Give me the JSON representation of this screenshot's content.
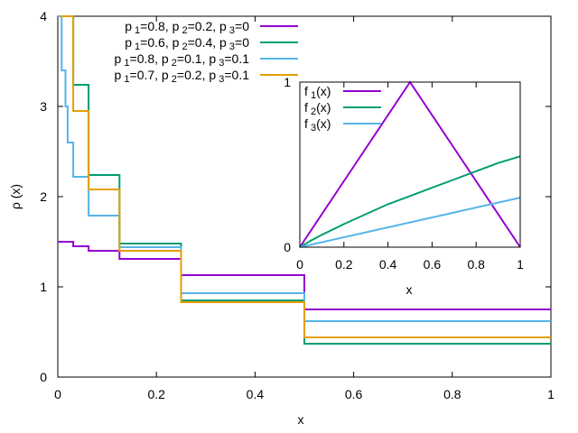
{
  "chart_data": [
    {
      "type": "line",
      "xlabel": "x",
      "ylabel": "ρ (x)",
      "xlim": [
        0,
        1
      ],
      "ylim": [
        0,
        4
      ],
      "xticks": [
        "0",
        "0.2",
        "0.4",
        "0.6",
        "0.8",
        "1"
      ],
      "yticks": [
        "0",
        "1",
        "2",
        "3",
        "4"
      ],
      "legend_placement": "top-right",
      "grid": false,
      "series": [
        {
          "name": "p 1=0.8, p 2=0.2, p 3=0",
          "label": {
            "p1": "0.8",
            "p2": "0.2",
            "p3": "0"
          },
          "color": "#9400d3",
          "steps": [
            [
              0,
              0.03125,
              1.5
            ],
            [
              0.03125,
              0.0625,
              1.45
            ],
            [
              0.0625,
              0.125,
              1.4
            ],
            [
              0.125,
              0.25,
              1.31
            ],
            [
              0.25,
              0.5,
              1.13
            ],
            [
              0.5,
              1,
              0.75
            ]
          ]
        },
        {
          "name": "p 1=0.6, p 2=0.4, p 3=0",
          "label": {
            "p1": "0.6",
            "p2": "0.4",
            "p3": "0"
          },
          "color": "#009e73",
          "steps": [
            [
              0,
              0.03125,
              4.0
            ],
            [
              0.03125,
              0.0625,
              3.24
            ],
            [
              0.0625,
              0.125,
              2.24
            ],
            [
              0.125,
              0.25,
              1.48
            ],
            [
              0.25,
              0.5,
              0.85
            ],
            [
              0.5,
              1,
              0.37
            ]
          ]
        },
        {
          "name": "p 1=0.8, p 2=0.1, p 3=0.1",
          "label": {
            "p1": "0.8",
            "p2": "0.1",
            "p3": "0.1"
          },
          "color": "#56b4e9",
          "steps": [
            [
              0,
              0.0078,
              4.0
            ],
            [
              0.0078,
              0.0156,
              3.4
            ],
            [
              0.0156,
              0.02,
              3.0
            ],
            [
              0.02,
              0.03125,
              2.6
            ],
            [
              0.03125,
              0.0625,
              2.22
            ],
            [
              0.0625,
              0.125,
              1.79
            ],
            [
              0.125,
              0.25,
              1.44
            ],
            [
              0.25,
              0.5,
              0.93
            ],
            [
              0.5,
              1,
              0.62
            ]
          ]
        },
        {
          "name": "p 1=0.7, p 2=0.2, p 3=0.1",
          "label": {
            "p1": "0.7",
            "p2": "0.2",
            "p3": "0.1"
          },
          "color": "#e69f00",
          "steps": [
            [
              0.005,
              0.03125,
              4.0
            ],
            [
              0.03125,
              0.0625,
              2.95
            ],
            [
              0.0625,
              0.125,
              2.08
            ],
            [
              0.125,
              0.25,
              1.4
            ],
            [
              0.25,
              0.5,
              0.83
            ],
            [
              0.5,
              1,
              0.44
            ]
          ]
        }
      ]
    },
    {
      "type": "line",
      "xlabel": "x",
      "ylabel": "",
      "xlim": [
        0,
        1
      ],
      "ylim": [
        0,
        1
      ],
      "xticks": [
        "0",
        "0.2",
        "0.4",
        "0.6",
        "0.8",
        "1"
      ],
      "yticks": [
        "0",
        "1"
      ],
      "legend_placement": "top-left",
      "series": [
        {
          "name": "f 1(x)",
          "label": {
            "f": "f",
            "sub": "1",
            "arg": "(x)"
          },
          "color": "#9400d3",
          "x": [
            0,
            0.5,
            1
          ],
          "y": [
            0,
            1,
            0
          ]
        },
        {
          "name": "f 2(x)",
          "label": {
            "f": "f",
            "sub": "2",
            "arg": "(x)"
          },
          "color": "#009e73",
          "x": [
            0,
            0.05,
            0.1,
            0.2,
            0.3,
            0.4,
            0.5,
            0.6,
            0.7,
            0.8,
            0.9,
            1.0
          ],
          "y": [
            0,
            0.04,
            0.075,
            0.14,
            0.2,
            0.26,
            0.31,
            0.36,
            0.41,
            0.46,
            0.51,
            0.55
          ]
        },
        {
          "name": "f 3(x)",
          "label": {
            "f": "f",
            "sub": "3",
            "arg": "(x)"
          },
          "color": "#56b4e9",
          "x": [
            0,
            1
          ],
          "y": [
            0,
            0.3
          ]
        }
      ]
    }
  ]
}
